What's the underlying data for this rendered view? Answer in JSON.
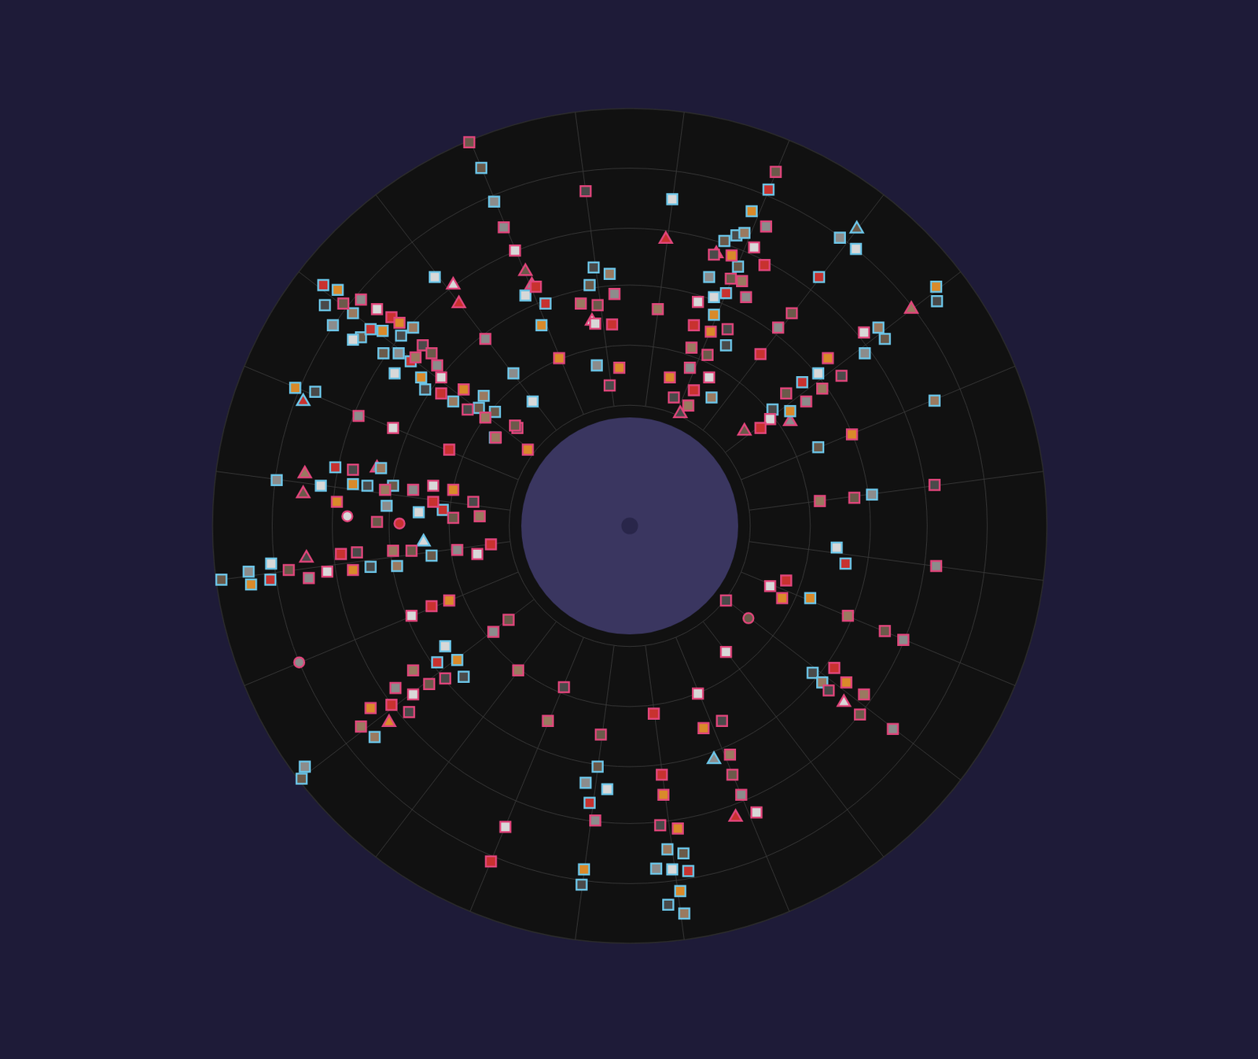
{
  "chart_data": {
    "type": "scatter",
    "xlim": [
      -520,
      520
    ],
    "ylim": [
      -520,
      520
    ],
    "grid": true,
    "tick_labels": false,
    "series": [
      {
        "color": "#e0457b",
        "marker": "square",
        "x": [
          -200,
          -157,
          -143,
          -117,
          -88,
          -55,
          -61,
          -40,
          -19,
          -43,
          -22,
          -13,
          -25,
          35,
          182,
          170,
          155,
          168,
          127,
          105,
          140,
          126,
          145,
          85,
          80,
          101,
          122,
          77,
          97,
          75,
          99,
          80,
          50,
          55,
          73,
          202,
          185,
          292,
          163,
          247,
          264,
          240,
          195,
          220,
          175,
          163,
          277,
          380,
          237,
          280,
          382,
          175,
          195,
          190,
          120,
          272,
          318,
          341,
          120,
          255,
          270,
          248,
          292,
          287,
          328,
          85,
          30,
          92,
          115,
          125,
          128,
          139,
          158,
          40,
          42,
          -82,
          -102,
          -36,
          -43,
          -155,
          -173,
          60,
          38,
          -139,
          -151,
          -170,
          -272,
          -247,
          -225,
          -230,
          -270,
          -250,
          -292,
          -270,
          -297,
          -323,
          -275,
          -335,
          -425,
          -400,
          -377,
          -360,
          -345,
          -340,
          -295,
          -272,
          -215,
          -190,
          -173,
          -365,
          -345,
          -305,
          -315,
          -270,
          -245,
          -245,
          -220,
          -195,
          -187,
          -220,
          -338,
          -295,
          -225,
          -127,
          -140,
          -167,
          -357,
          -335,
          -315,
          -297,
          -287,
          -258,
          -267,
          -247,
          -240,
          -235,
          -235,
          -207,
          -202,
          -180,
          -143,
          -180
        ],
        "y": [
          478,
          372,
          343,
          298,
          209,
          417,
          277,
          275,
          289,
          252,
          251,
          197,
          175,
          270,
          441,
          373,
          347,
          325,
          337,
          338,
          305,
          308,
          285,
          279,
          250,
          242,
          245,
          222,
          213,
          197,
          185,
          169,
          185,
          160,
          150,
          265,
          247,
          241,
          214,
          209,
          187,
          171,
          165,
          155,
          133,
          122,
          114,
          51,
          31,
          35,
          -50,
          -75,
          -68,
          -90,
          -93,
          -112,
          -131,
          -142,
          -157,
          -177,
          -195,
          -205,
          -210,
          -235,
          -253,
          -209,
          -234,
          -252,
          -243,
          -285,
          -310,
          -335,
          -357,
          -310,
          -335,
          -201,
          -243,
          -260,
          -367,
          -375,
          -418,
          -377,
          -373,
          -180,
          -117,
          -132,
          -112,
          -100,
          -93,
          -190,
          -180,
          -197,
          -202,
          -210,
          -223,
          -227,
          -232,
          -250,
          -55,
          -65,
          -57,
          -35,
          -55,
          -33,
          -31,
          -31,
          -30,
          -35,
          -23,
          30,
          70,
          45,
          5,
          45,
          50,
          30,
          45,
          30,
          12,
          10,
          137,
          122,
          95,
          95,
          122,
          110,
          277,
          282,
          270,
          260,
          253,
          225,
          210,
          215,
          200,
          185,
          165,
          170,
          145,
          135,
          125,
          233
        ]
      },
      {
        "color": "#6cc5e8",
        "marker": "square",
        "x": [
          -185,
          -169,
          -130,
          -105,
          -110,
          -45,
          -25,
          -50,
          -41,
          53,
          173,
          152,
          133,
          143,
          118,
          99,
          105,
          120,
          105,
          120,
          102,
          135,
          262,
          282,
          236,
          382,
          383,
          310,
          318,
          293,
          235,
          215,
          200,
          178,
          380,
          235,
          302,
          258,
          269,
          225,
          228,
          240,
          -40,
          -55,
          -28,
          -50,
          -57,
          -60,
          47,
          67,
          33,
          53,
          73,
          63,
          48,
          68,
          -409,
          -405,
          -230,
          -240,
          -215,
          -207,
          -318,
          -509,
          -475,
          -447,
          -448,
          -472,
          -323,
          -290,
          -247,
          -440,
          -385,
          -367,
          -345,
          -327,
          -310,
          -295,
          -303,
          -263,
          -233,
          -417,
          -392,
          -182,
          -168,
          -145,
          -121,
          -382,
          -364,
          -380,
          -345,
          -335,
          -370,
          -345,
          -323,
          -308,
          -285,
          -270,
          -307,
          -288,
          -293,
          -273,
          -260,
          -255,
          -220,
          -188,
          -168,
          -243
        ],
        "y": [
          446,
          404,
          287,
          277,
          250,
          322,
          314,
          300,
          200,
          407,
          419,
          392,
          362,
          365,
          355,
          310,
          285,
          290,
          263,
          225,
          160,
          323,
          359,
          345,
          310,
          298,
          280,
          247,
          233,
          215,
          190,
          179,
          143,
          145,
          156,
          98,
          39,
          -27,
          -47,
          -90,
          -183,
          -195,
          -300,
          -320,
          -328,
          -345,
          -428,
          -447,
          -403,
          -408,
          -427,
          -428,
          -430,
          -455,
          -472,
          -483,
          -315,
          -300,
          -150,
          -170,
          -167,
          -188,
          -263,
          -67,
          -57,
          -47,
          -67,
          -73,
          -51,
          -50,
          -37,
          57,
          50,
          73,
          52,
          50,
          72,
          50,
          25,
          17,
          20,
          172,
          167,
          162,
          142,
          190,
          155,
          300,
          294,
          275,
          265,
          235,
          250,
          232,
          245,
          243,
          237,
          247,
          215,
          215,
          190,
          205,
          185,
          170,
          155,
          147,
          110,
          310
        ]
      },
      {
        "color": "#e0457b",
        "marker": "triangle",
        "x": [
          -130,
          -122,
          -47,
          45,
          108,
          63,
          351,
          143,
          200,
          267,
          132,
          -300,
          -403,
          -405,
          -407,
          -315,
          -220,
          -213
        ],
        "y": [
          317,
          300,
          255,
          357,
          339,
          140,
          270,
          118,
          130,
          -220,
          -363,
          -245,
          -40,
          65,
          40,
          72,
          300,
          277
        ]
      },
      {
        "color": "#6cc5e8",
        "marker": "triangle",
        "x": [
          283,
          105,
          -257,
          -407
        ],
        "y": [
          370,
          -291,
          -20,
          155
        ]
      },
      {
        "color": "#e0457b",
        "marker": "circle",
        "x": [
          148,
          -412,
          -352,
          -287
        ],
        "y": [
          -115,
          -170,
          12,
          3
        ]
      }
    ]
  }
}
